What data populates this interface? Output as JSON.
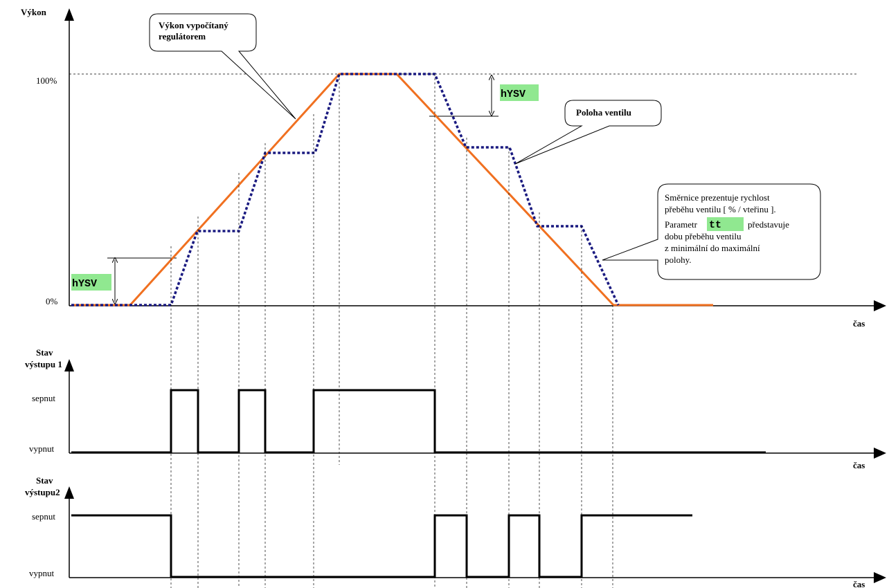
{
  "top_chart": {
    "ylabel": "Výkon",
    "xlabel": "čas",
    "tick_100": "100%",
    "tick_0": "0%",
    "hysteresis_label": "hYSV",
    "hysteresis_label_2": "hYSV"
  },
  "callouts": {
    "regulator": [
      "Výkon vypočítaný",
      "regulátorem"
    ],
    "valve": "Poloha ventilu",
    "slope": {
      "line1": "Směrnice prezentuje rychlost",
      "line2": "přeběhu ventilu [ % / vteřinu ].",
      "line3_pre": "Parametr",
      "param": "tt",
      "line3_post": "představuje",
      "line4": "dobu přeběhu ventilu",
      "line5": "z minimální do maximální",
      "line6": "polohy."
    }
  },
  "output1": {
    "title": [
      "Stav",
      "výstupu 1"
    ],
    "on": "sepnut",
    "off": "vypnut",
    "xlabel": "čas"
  },
  "output2": {
    "title": [
      "Stav",
      "výstupu2"
    ],
    "on": "sepnut",
    "off": "vypnut",
    "xlabel": "čas"
  },
  "colors": {
    "regulator_line": "#f07020",
    "valve_line": "#1a1a80",
    "param_highlight": "#90e890"
  }
}
